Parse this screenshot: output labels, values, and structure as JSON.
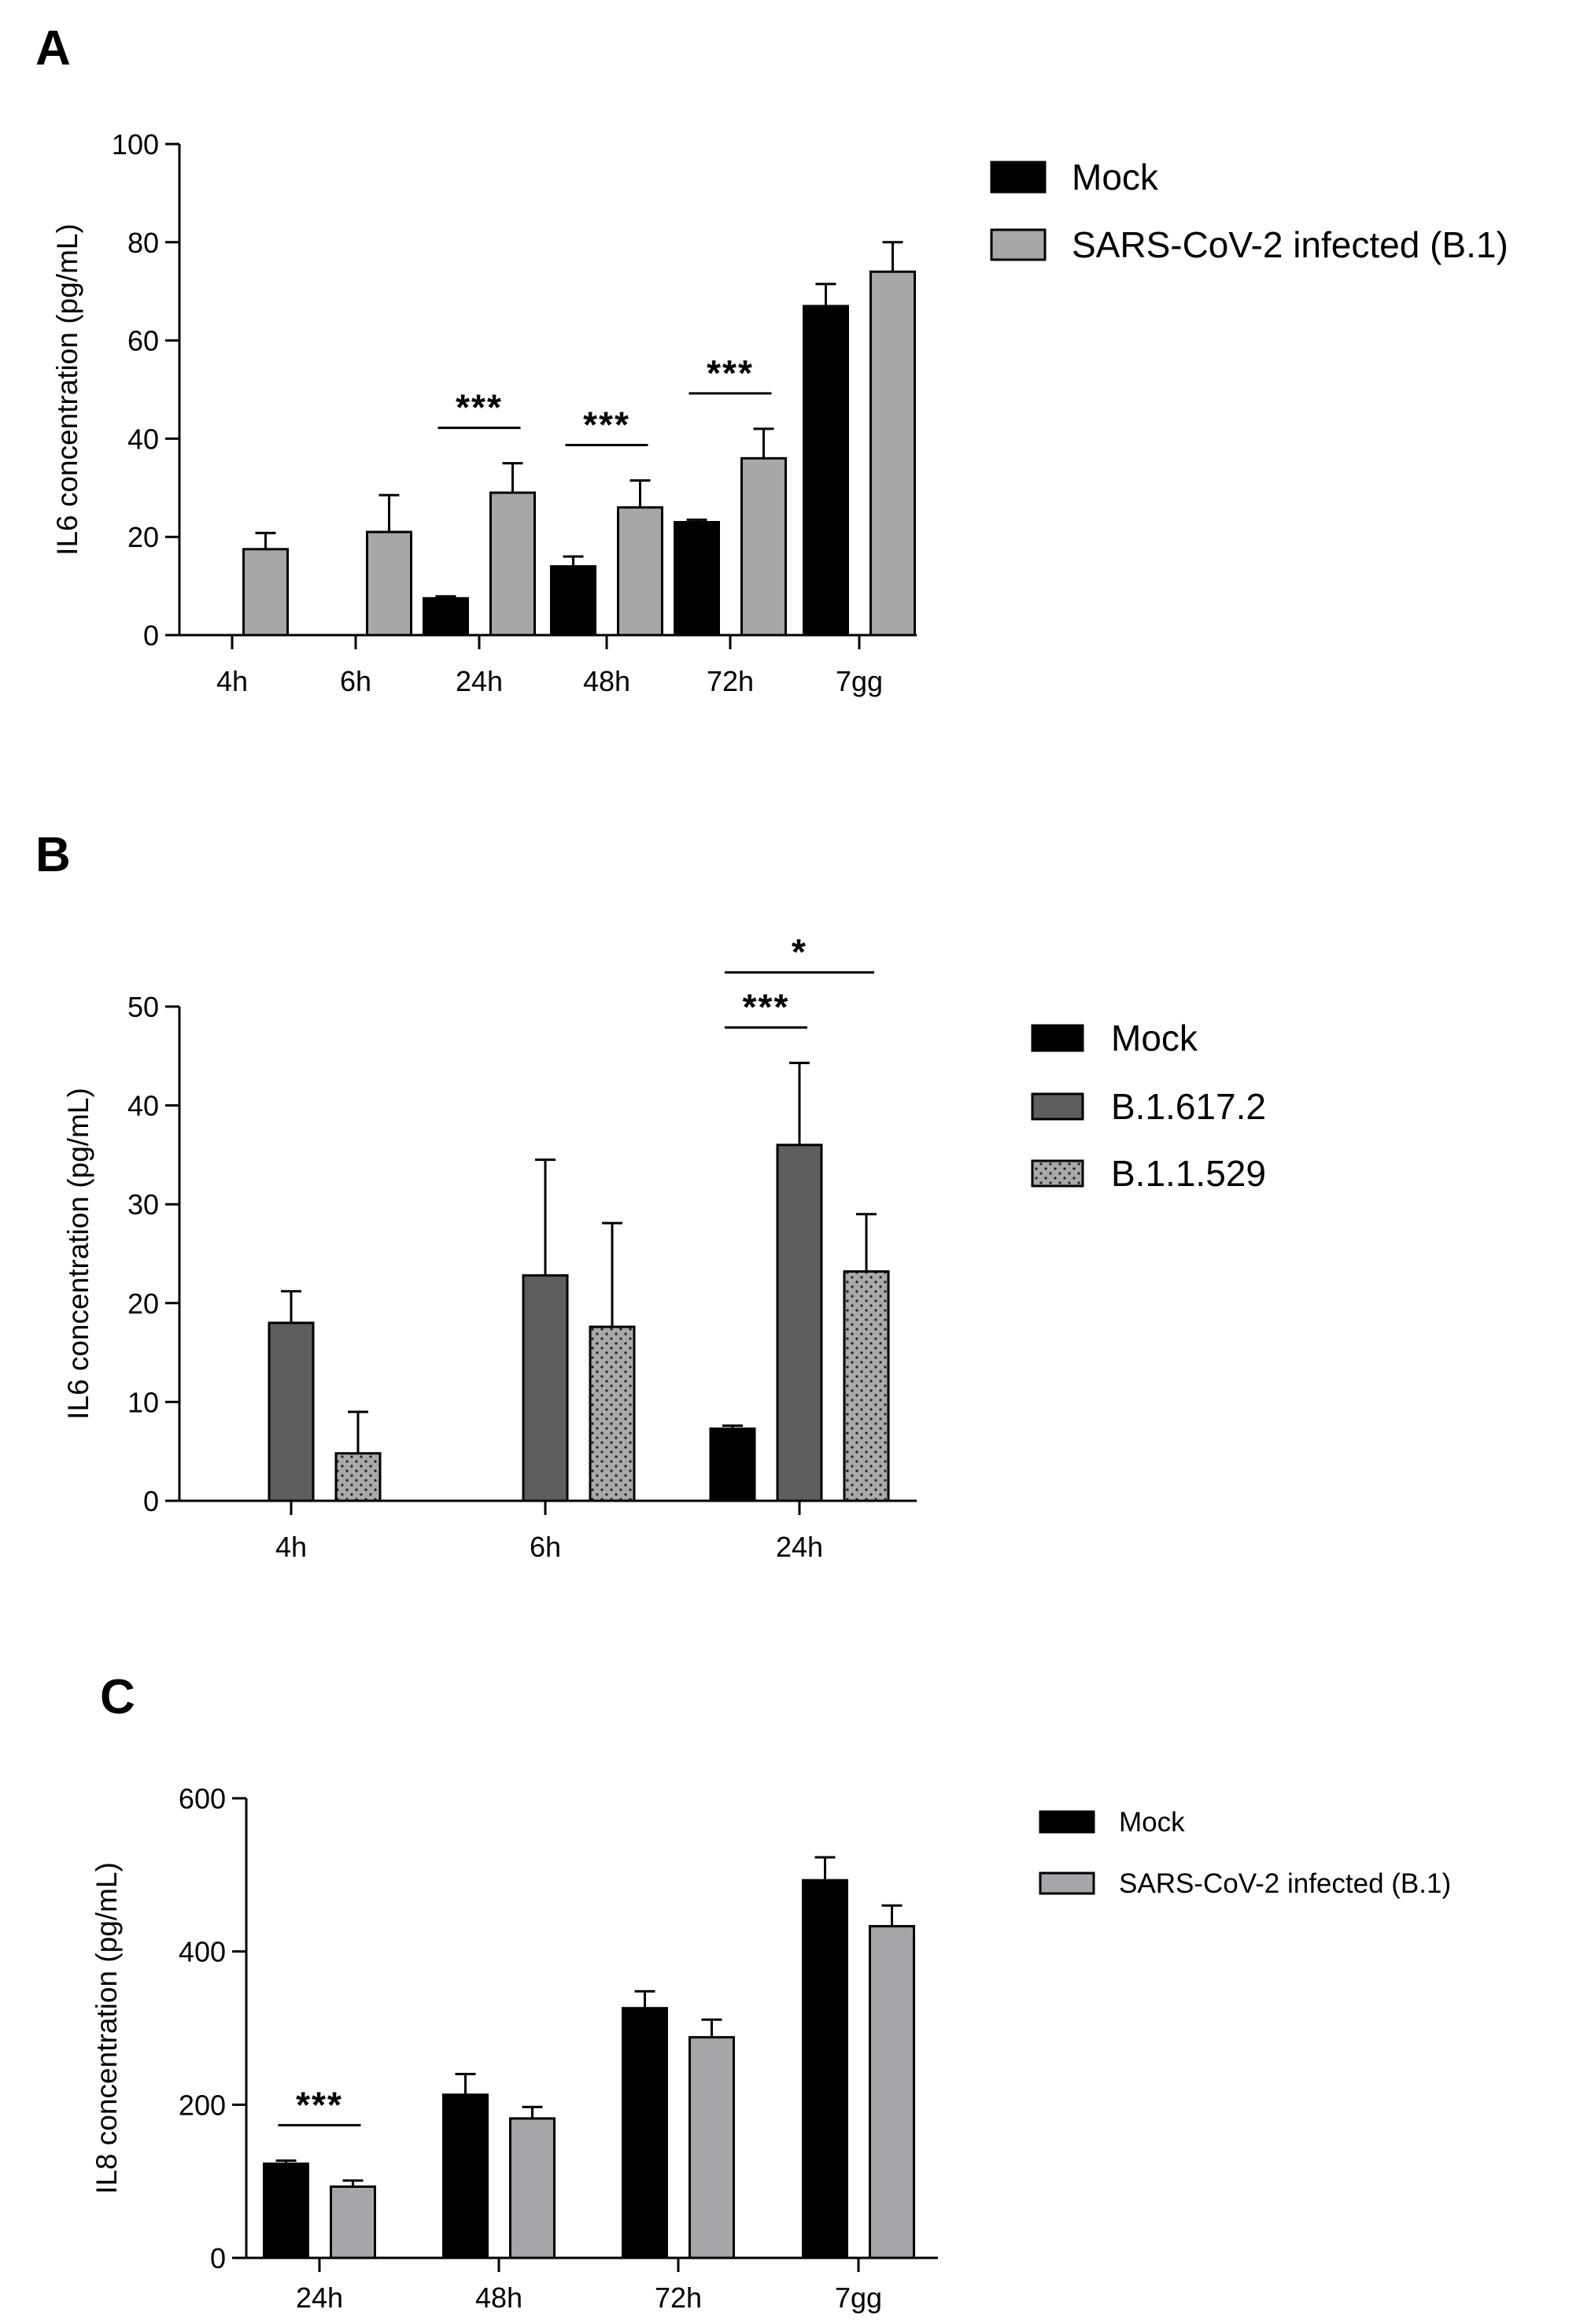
{
  "chart_data": [
    {
      "panel": "A",
      "type": "bar",
      "ylabel": "IL6 concentration (pg/mL)",
      "xlabel": "",
      "ylim": [
        0,
        100
      ],
      "yticks": [
        0,
        20,
        40,
        60,
        80,
        100
      ],
      "categories": [
        "4h",
        "6h",
        "24h",
        "48h",
        "72h",
        "7gg"
      ],
      "series": [
        {
          "name": "Mock",
          "color": "#000000",
          "pattern": "solid",
          "values": [
            0,
            0,
            7.5,
            14,
            23,
            67
          ],
          "errors": [
            0,
            0,
            0.4,
            2,
            0.5,
            4.5
          ]
        },
        {
          "name": "SARS-CoV-2 infected (B.1)",
          "color": "#a7a7a7",
          "pattern": "solid",
          "values": [
            17.5,
            21,
            29,
            26,
            36,
            74
          ],
          "errors": [
            3.3,
            7.5,
            6,
            5.5,
            6,
            6
          ]
        }
      ],
      "significance": [
        {
          "category_index": 2,
          "label": "***",
          "from": 0,
          "to": 1
        },
        {
          "category_index": 3,
          "label": "***",
          "from": 0,
          "to": 1
        },
        {
          "category_index": 4,
          "label": "***",
          "from": 0,
          "to": 1
        }
      ]
    },
    {
      "panel": "B",
      "type": "bar",
      "ylabel": "IL6 concentration (pg/mL)",
      "xlabel": "",
      "ylim": [
        0,
        50
      ],
      "yticks": [
        0,
        10,
        20,
        30,
        40,
        50
      ],
      "categories": [
        "4h",
        "6h",
        "24h"
      ],
      "series": [
        {
          "name": "Mock",
          "color": "#000000",
          "pattern": "solid",
          "values": [
            0,
            0,
            7.3
          ],
          "errors": [
            0,
            0,
            0.3
          ]
        },
        {
          "name": "B.1.617.2",
          "color": "#5e5e5e",
          "pattern": "solid",
          "values": [
            18,
            22.8,
            36
          ],
          "errors": [
            3.2,
            11.7,
            8.3
          ]
        },
        {
          "name": "B.1.1.529",
          "color": "#a9a9a9",
          "pattern": "dotted",
          "values": [
            4.8,
            17.6,
            23.2
          ],
          "errors": [
            4.2,
            10.5,
            5.8
          ]
        }
      ],
      "significance": [
        {
          "category_index": 2,
          "label": "***",
          "from": 0,
          "to": 1
        },
        {
          "category_index": 2,
          "label": "*",
          "from": 0,
          "to": 2
        }
      ]
    },
    {
      "panel": "C",
      "type": "bar",
      "ylabel": "IL8 concentration (pg/mL)",
      "xlabel": "",
      "ylim": [
        0,
        600
      ],
      "yticks": [
        0,
        200,
        400,
        600
      ],
      "categories": [
        "24h",
        "48h",
        "72h",
        "7gg"
      ],
      "series": [
        {
          "name": "Mock",
          "color": "#000000",
          "pattern": "solid",
          "values": [
            123,
            213,
            326,
            493
          ],
          "errors": [
            4,
            27,
            22,
            30
          ]
        },
        {
          "name": "SARS-CoV-2 infected (B.1)",
          "color": "#a5a5aa",
          "pattern": "solid",
          "values": [
            93,
            182,
            288,
            433
          ],
          "errors": [
            8,
            15,
            23,
            27
          ]
        }
      ],
      "significance": [
        {
          "category_index": 0,
          "label": "***",
          "from": 0,
          "to": 1
        }
      ]
    }
  ]
}
